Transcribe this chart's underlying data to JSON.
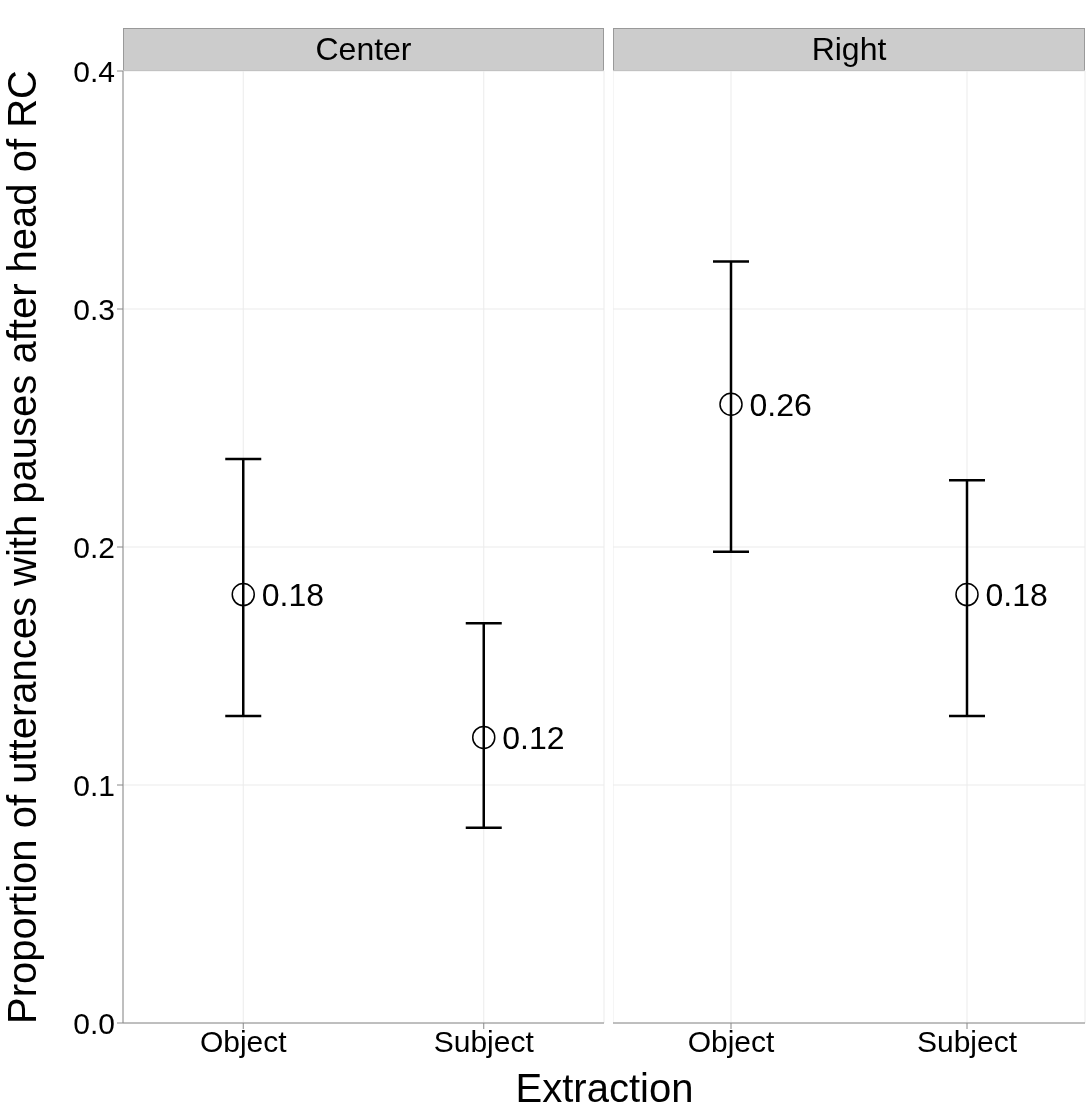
{
  "chart_data": [
    {
      "type": "scatter",
      "title": "Center",
      "ylabel": "Proportion of utterances with pauses after head of RC",
      "xlabel": "Extraction",
      "categories": [
        "Object",
        "Subject"
      ],
      "values": [
        0.18,
        0.12
      ],
      "errors": [
        [
          0.129,
          0.237
        ],
        [
          0.082,
          0.168
        ]
      ],
      "color": "#000000",
      "marker": "circle",
      "data_labels": true,
      "ylim": [
        0,
        0.4
      ],
      "yticks": [
        {
          "value": 0,
          "label": "0.0"
        },
        0.1,
        0.2,
        0.3,
        0.4
      ],
      "grid": true
    },
    {
      "type": "scatter",
      "title": "Right",
      "categories": [
        "Object",
        "Subject"
      ],
      "values": [
        0.26,
        0.18
      ],
      "errors": [
        [
          0.198,
          0.32
        ],
        [
          0.129,
          0.228
        ]
      ],
      "color": "#000000",
      "marker": "circle",
      "data_labels": true,
      "ylim": [
        0,
        0.4
      ],
      "yticks": [
        {
          "value": 0,
          "label": null
        },
        {
          "value": 0.1,
          "label": null
        },
        {
          "value": 0.2,
          "label": null
        },
        {
          "value": 0.3,
          "label": null
        },
        {
          "value": 0.4,
          "label": null
        }
      ],
      "grid": true,
      "tick_labels": "x"
    }
  ]
}
